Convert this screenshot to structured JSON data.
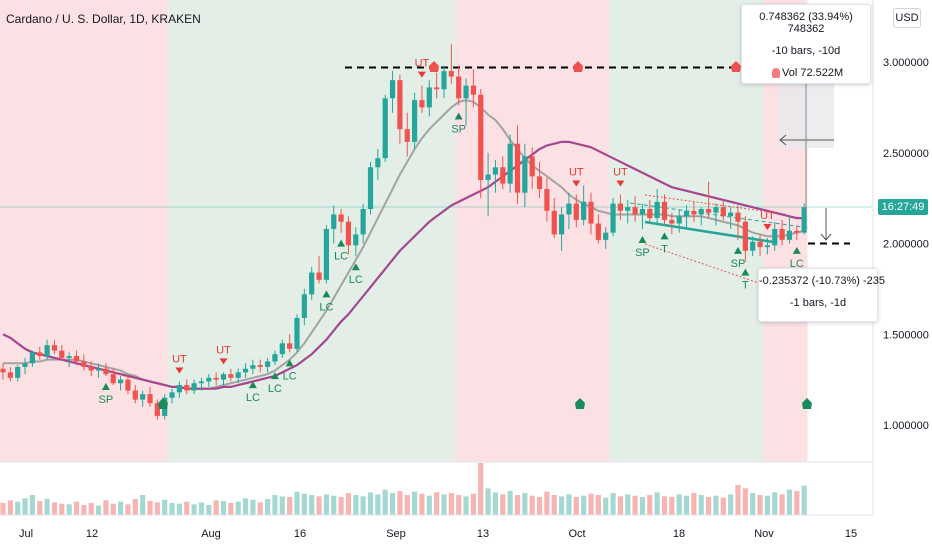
{
  "header": {
    "title": "Cardano / U. S. Dollar, 1D, KRAKEN",
    "currency_button": "USD"
  },
  "measure_up": {
    "line1": "0.748362 (33.94%) 748362",
    "line2": "-10 bars, -10d",
    "line3": "Vol 72.522M"
  },
  "measure_down": {
    "line1": "-0.235372 (-10.73%) -235",
    "line2": "-1 bars, -1d"
  },
  "countdown": "16:27:49",
  "colors": {
    "up": "#26a69a",
    "down": "#ef5350",
    "ma_purple": "#a4478f",
    "ma_gray": "#a3a3a3",
    "zone_red": "#fbe1e3",
    "zone_green": "#e3efe6",
    "signal_green": "#1b8a5a",
    "signal_red": "#e53935"
  },
  "chart_data": {
    "type": "candlestick",
    "symbol": "Cardano / U. S. Dollar",
    "interval": "1D",
    "exchange": "KRAKEN",
    "y_ticks": [
      "3.000000",
      "2.500000",
      "2.000000",
      "1.500000",
      "1.000000"
    ],
    "x_ticks": [
      "Jul",
      "12",
      "Aug",
      "16",
      "Sep",
      "13",
      "Oct",
      "18",
      "Nov",
      "15"
    ],
    "ylim": [
      0.8,
      3.3
    ],
    "candles": [
      [
        1.31,
        1.34,
        1.25,
        1.29
      ],
      [
        1.29,
        1.32,
        1.24,
        1.26
      ],
      [
        1.26,
        1.33,
        1.24,
        1.32
      ],
      [
        1.32,
        1.37,
        1.28,
        1.34
      ],
      [
        1.34,
        1.41,
        1.32,
        1.4
      ],
      [
        1.4,
        1.43,
        1.36,
        1.38
      ],
      [
        1.38,
        1.47,
        1.36,
        1.44
      ],
      [
        1.44,
        1.47,
        1.39,
        1.41
      ],
      [
        1.41,
        1.44,
        1.36,
        1.37
      ],
      [
        1.37,
        1.4,
        1.32,
        1.38
      ],
      [
        1.38,
        1.41,
        1.33,
        1.35
      ],
      [
        1.35,
        1.39,
        1.3,
        1.32
      ],
      [
        1.32,
        1.35,
        1.27,
        1.3
      ],
      [
        1.3,
        1.34,
        1.26,
        1.31
      ],
      [
        1.31,
        1.34,
        1.27,
        1.28
      ],
      [
        1.28,
        1.31,
        1.22,
        1.23
      ],
      [
        1.23,
        1.27,
        1.19,
        1.25
      ],
      [
        1.25,
        1.28,
        1.17,
        1.19
      ],
      [
        1.19,
        1.22,
        1.12,
        1.14
      ],
      [
        1.14,
        1.19,
        1.1,
        1.17
      ],
      [
        1.17,
        1.21,
        1.1,
        1.12
      ],
      [
        1.12,
        1.14,
        1.03,
        1.05
      ],
      [
        1.05,
        1.17,
        1.03,
        1.15
      ],
      [
        1.15,
        1.2,
        1.12,
        1.18
      ],
      [
        1.18,
        1.24,
        1.15,
        1.22
      ],
      [
        1.22,
        1.25,
        1.17,
        1.19
      ],
      [
        1.19,
        1.25,
        1.17,
        1.23
      ],
      [
        1.23,
        1.26,
        1.19,
        1.24
      ],
      [
        1.24,
        1.28,
        1.21,
        1.26
      ],
      [
        1.26,
        1.29,
        1.22,
        1.25
      ],
      [
        1.25,
        1.29,
        1.22,
        1.28
      ],
      [
        1.28,
        1.31,
        1.24,
        1.26
      ],
      [
        1.26,
        1.31,
        1.23,
        1.29
      ],
      [
        1.29,
        1.34,
        1.26,
        1.31
      ],
      [
        1.31,
        1.36,
        1.28,
        1.33
      ],
      [
        1.33,
        1.36,
        1.29,
        1.32
      ],
      [
        1.32,
        1.37,
        1.29,
        1.35
      ],
      [
        1.35,
        1.41,
        1.33,
        1.39
      ],
      [
        1.39,
        1.47,
        1.37,
        1.45
      ],
      [
        1.45,
        1.5,
        1.4,
        1.42
      ],
      [
        1.42,
        1.61,
        1.4,
        1.59
      ],
      [
        1.59,
        1.75,
        1.55,
        1.72
      ],
      [
        1.72,
        1.87,
        1.69,
        1.84
      ],
      [
        1.84,
        1.93,
        1.78,
        1.8
      ],
      [
        1.8,
        2.1,
        1.78,
        2.08
      ],
      [
        2.08,
        2.21,
        2.0,
        2.16
      ],
      [
        2.16,
        2.19,
        2.06,
        2.12
      ],
      [
        2.12,
        2.15,
        1.94,
        1.99
      ],
      [
        1.99,
        2.09,
        1.93,
        2.05
      ],
      [
        2.05,
        2.22,
        2.0,
        2.19
      ],
      [
        2.19,
        2.45,
        2.16,
        2.42
      ],
      [
        2.42,
        2.52,
        2.35,
        2.47
      ],
      [
        2.47,
        2.82,
        2.45,
        2.8
      ],
      [
        2.8,
        2.95,
        2.72,
        2.9
      ],
      [
        2.9,
        2.93,
        2.55,
        2.63
      ],
      [
        2.63,
        2.72,
        2.48,
        2.56
      ],
      [
        2.56,
        2.83,
        2.52,
        2.79
      ],
      [
        2.79,
        2.87,
        2.72,
        2.75
      ],
      [
        2.75,
        2.9,
        2.7,
        2.86
      ],
      [
        2.86,
        2.94,
        2.8,
        2.85
      ],
      [
        2.85,
        2.98,
        2.8,
        2.95
      ],
      [
        2.95,
        3.1,
        2.88,
        2.92
      ],
      [
        2.92,
        2.98,
        2.76,
        2.8
      ],
      [
        2.8,
        2.91,
        2.65,
        2.87
      ],
      [
        2.87,
        2.96,
        2.75,
        2.82
      ],
      [
        2.82,
        2.85,
        2.25,
        2.35
      ],
      [
        2.35,
        2.5,
        2.15,
        2.38
      ],
      [
        2.38,
        2.46,
        2.28,
        2.42
      ],
      [
        2.42,
        2.48,
        2.3,
        2.33
      ],
      [
        2.33,
        2.6,
        2.28,
        2.55
      ],
      [
        2.55,
        2.65,
        2.22,
        2.28
      ],
      [
        2.28,
        2.55,
        2.2,
        2.48
      ],
      [
        2.48,
        2.53,
        2.3,
        2.37
      ],
      [
        2.37,
        2.45,
        2.25,
        2.3
      ],
      [
        2.3,
        2.36,
        2.12,
        2.18
      ],
      [
        2.18,
        2.25,
        2.03,
        2.05
      ],
      [
        2.05,
        2.2,
        1.96,
        2.16
      ],
      [
        2.16,
        2.28,
        2.08,
        2.22
      ],
      [
        2.22,
        2.27,
        2.09,
        2.13
      ],
      [
        2.13,
        2.32,
        2.1,
        2.23
      ],
      [
        2.23,
        2.28,
        2.05,
        2.11
      ],
      [
        2.11,
        2.16,
        2.0,
        2.02
      ],
      [
        2.02,
        2.09,
        1.97,
        2.06
      ],
      [
        2.06,
        2.25,
        2.04,
        2.22
      ],
      [
        2.22,
        2.27,
        2.13,
        2.18
      ],
      [
        2.18,
        2.24,
        2.11,
        2.2
      ],
      [
        2.2,
        2.26,
        2.12,
        2.16
      ],
      [
        2.16,
        2.22,
        2.08,
        2.19
      ],
      [
        2.19,
        2.24,
        2.12,
        2.14
      ],
      [
        2.14,
        2.3,
        2.1,
        2.23
      ],
      [
        2.23,
        2.27,
        2.1,
        2.13
      ],
      [
        2.13,
        2.17,
        2.05,
        2.11
      ],
      [
        2.11,
        2.19,
        2.06,
        2.15
      ],
      [
        2.15,
        2.21,
        2.09,
        2.18
      ],
      [
        2.18,
        2.23,
        2.12,
        2.16
      ],
      [
        2.16,
        2.2,
        2.1,
        2.19
      ],
      [
        2.19,
        2.34,
        2.14,
        2.17
      ],
      [
        2.17,
        2.22,
        2.1,
        2.2
      ],
      [
        2.2,
        2.24,
        2.13,
        2.15
      ],
      [
        2.15,
        2.2,
        2.08,
        2.17
      ],
      [
        2.17,
        2.21,
        2.02,
        2.12
      ],
      [
        2.12,
        2.15,
        1.9,
        1.96
      ],
      [
        1.96,
        2.04,
        1.93,
        2.01
      ],
      [
        2.01,
        2.05,
        1.93,
        1.98
      ],
      [
        1.98,
        2.03,
        1.94,
        1.99
      ],
      [
        1.99,
        2.12,
        1.96,
        2.08
      ],
      [
        2.08,
        2.13,
        1.99,
        2.02
      ],
      [
        2.02,
        2.15,
        2.0,
        2.07
      ],
      [
        2.07,
        2.1,
        2.02,
        2.06
      ],
      [
        2.06,
        2.22,
        2.05,
        2.2
      ]
    ],
    "volume": [
      18,
      22,
      20,
      25,
      30,
      21,
      24,
      19,
      17,
      16,
      20,
      15,
      18,
      14,
      22,
      17,
      20,
      16,
      24,
      30,
      21,
      19,
      23,
      18,
      17,
      20,
      16,
      19,
      15,
      22,
      21,
      18,
      20,
      25,
      23,
      19,
      24,
      30,
      28,
      27,
      35,
      32,
      30,
      28,
      31,
      29,
      27,
      33,
      30,
      28,
      34,
      31,
      38,
      33,
      36,
      30,
      35,
      32,
      29,
      34,
      31,
      33,
      30,
      28,
      32,
      78,
      40,
      34,
      31,
      36,
      30,
      33,
      29,
      27,
      35,
      30,
      28,
      31,
      27,
      29,
      32,
      30,
      26,
      33,
      28,
      31,
      29,
      27,
      30,
      34,
      28,
      27,
      31,
      29,
      33,
      30,
      27,
      29,
      26,
      31,
      45,
      40,
      33,
      30,
      29,
      34,
      31,
      38,
      36,
      44
    ],
    "ma_purple": [
      1.5,
      1.48,
      1.45,
      1.42,
      1.4,
      1.39,
      1.38,
      1.37,
      1.36,
      1.35,
      1.34,
      1.33,
      1.32,
      1.31,
      1.3,
      1.29,
      1.28,
      1.27,
      1.26,
      1.25,
      1.24,
      1.23,
      1.22,
      1.21,
      1.21,
      1.2,
      1.2,
      1.2,
      1.2,
      1.2,
      1.21,
      1.21,
      1.22,
      1.23,
      1.24,
      1.25,
      1.26,
      1.27,
      1.29,
      1.31,
      1.33,
      1.36,
      1.39,
      1.43,
      1.47,
      1.52,
      1.57,
      1.61,
      1.66,
      1.71,
      1.76,
      1.81,
      1.86,
      1.91,
      1.96,
      2.0,
      2.04,
      2.08,
      2.12,
      2.15,
      2.18,
      2.21,
      2.23,
      2.25,
      2.27,
      2.29,
      2.31,
      2.34,
      2.37,
      2.4,
      2.43,
      2.46,
      2.49,
      2.52,
      2.54,
      2.55,
      2.56,
      2.56,
      2.55,
      2.54,
      2.53,
      2.51,
      2.49,
      2.47,
      2.45,
      2.43,
      2.41,
      2.39,
      2.37,
      2.35,
      2.33,
      2.31,
      2.3,
      2.29,
      2.28,
      2.27,
      2.26,
      2.25,
      2.24,
      2.23,
      2.22,
      2.21,
      2.2,
      2.19,
      2.18,
      2.17,
      2.16,
      2.15,
      2.14,
      2.14
    ],
    "ma_gray": [
      1.34,
      1.34,
      1.34,
      1.34,
      1.35,
      1.35,
      1.36,
      1.36,
      1.36,
      1.36,
      1.36,
      1.35,
      1.34,
      1.33,
      1.32,
      1.31,
      1.3,
      1.28,
      1.27,
      1.25,
      1.24,
      1.23,
      1.22,
      1.21,
      1.21,
      1.2,
      1.2,
      1.2,
      1.2,
      1.21,
      1.22,
      1.23,
      1.24,
      1.25,
      1.26,
      1.27,
      1.28,
      1.3,
      1.33,
      1.36,
      1.4,
      1.45,
      1.51,
      1.57,
      1.63,
      1.7,
      1.77,
      1.84,
      1.91,
      1.98,
      2.06,
      2.14,
      2.22,
      2.3,
      2.38,
      2.45,
      2.52,
      2.58,
      2.63,
      2.67,
      2.71,
      2.75,
      2.78,
      2.79,
      2.78,
      2.75,
      2.71,
      2.68,
      2.63,
      2.57,
      2.52,
      2.47,
      2.43,
      2.4,
      2.37,
      2.34,
      2.31,
      2.27,
      2.24,
      2.22,
      2.2,
      2.18,
      2.17,
      2.16,
      2.16,
      2.16,
      2.16,
      2.16,
      2.16,
      2.16,
      2.16,
      2.15,
      2.15,
      2.15,
      2.15,
      2.15,
      2.14,
      2.13,
      2.12,
      2.11,
      2.1,
      2.08,
      2.06,
      2.05,
      2.04,
      2.04,
      2.04,
      2.05,
      2.06,
      2.07
    ],
    "zones": [
      {
        "from": 0,
        "to": 23,
        "color": "red"
      },
      {
        "from": 23,
        "to": 62,
        "color": "green"
      },
      {
        "from": 62,
        "to": 83,
        "color": "red"
      },
      {
        "from": 83,
        "to": 104,
        "color": "green"
      },
      {
        "from": 104,
        "to": 115,
        "color": "red"
      }
    ],
    "signals": [
      {
        "i": 14,
        "label": "SP",
        "dir": "below"
      },
      {
        "i": 24,
        "label": "UT",
        "dir": "above"
      },
      {
        "i": 30,
        "label": "UT",
        "dir": "above"
      },
      {
        "i": 34,
        "label": "LC",
        "dir": "below"
      },
      {
        "i": 37,
        "label": "LC",
        "dir": "below"
      },
      {
        "i": 39,
        "label": "LC",
        "dir": "below"
      },
      {
        "i": 44,
        "label": "LC",
        "dir": "below"
      },
      {
        "i": 46,
        "label": "LC",
        "dir": "below"
      },
      {
        "i": 48,
        "label": "LC",
        "dir": "below"
      },
      {
        "i": 57,
        "label": "UT",
        "dir": "above"
      },
      {
        "i": 62,
        "label": "SP",
        "dir": "below"
      },
      {
        "i": 78,
        "label": "UT",
        "dir": "above"
      },
      {
        "i": 84,
        "label": "UT",
        "dir": "above"
      },
      {
        "i": 87,
        "label": "SP",
        "dir": "below"
      },
      {
        "i": 90,
        "label": "T",
        "dir": "below"
      },
      {
        "i": 104,
        "label": "UT",
        "dir": "above"
      },
      {
        "i": 100,
        "label": "SP",
        "dir": "below"
      },
      {
        "i": 101,
        "label": "T",
        "dir": "below"
      },
      {
        "i": 108,
        "label": "LC",
        "dir": "below"
      }
    ],
    "hline_level": 2.97,
    "hline_level2": 2.0
  }
}
